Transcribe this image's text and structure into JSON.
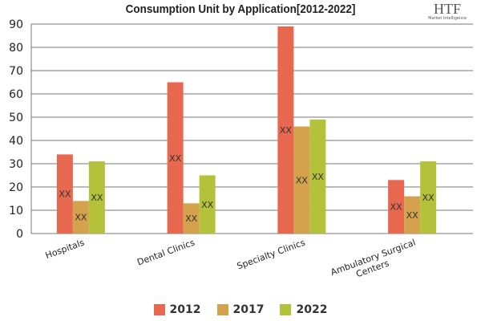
{
  "chart_data": {
    "type": "bar",
    "title": "Consumption Unit by  Application[2012-2022]",
    "categories": [
      "Hospitals",
      "Dental Clinics",
      "Specialty Clinics",
      "Ambulatory Surgical Centers"
    ],
    "series": [
      {
        "name": "2012",
        "color": "#e8684f",
        "values": [
          34,
          65,
          89,
          23
        ]
      },
      {
        "name": "2017",
        "color": "#d4a24c",
        "values": [
          14,
          13,
          46,
          16
        ]
      },
      {
        "name": "2022",
        "color": "#b3c23a",
        "values": [
          31,
          25,
          49,
          31
        ]
      }
    ],
    "data_label": "XX",
    "ylim": [
      0,
      90
    ],
    "yticks": [
      0,
      10,
      20,
      30,
      40,
      50,
      60,
      70,
      80,
      90
    ],
    "grid": true,
    "legend": "bottom"
  },
  "logo": {
    "text": "HTF",
    "subtext": "Market Intelligence"
  }
}
